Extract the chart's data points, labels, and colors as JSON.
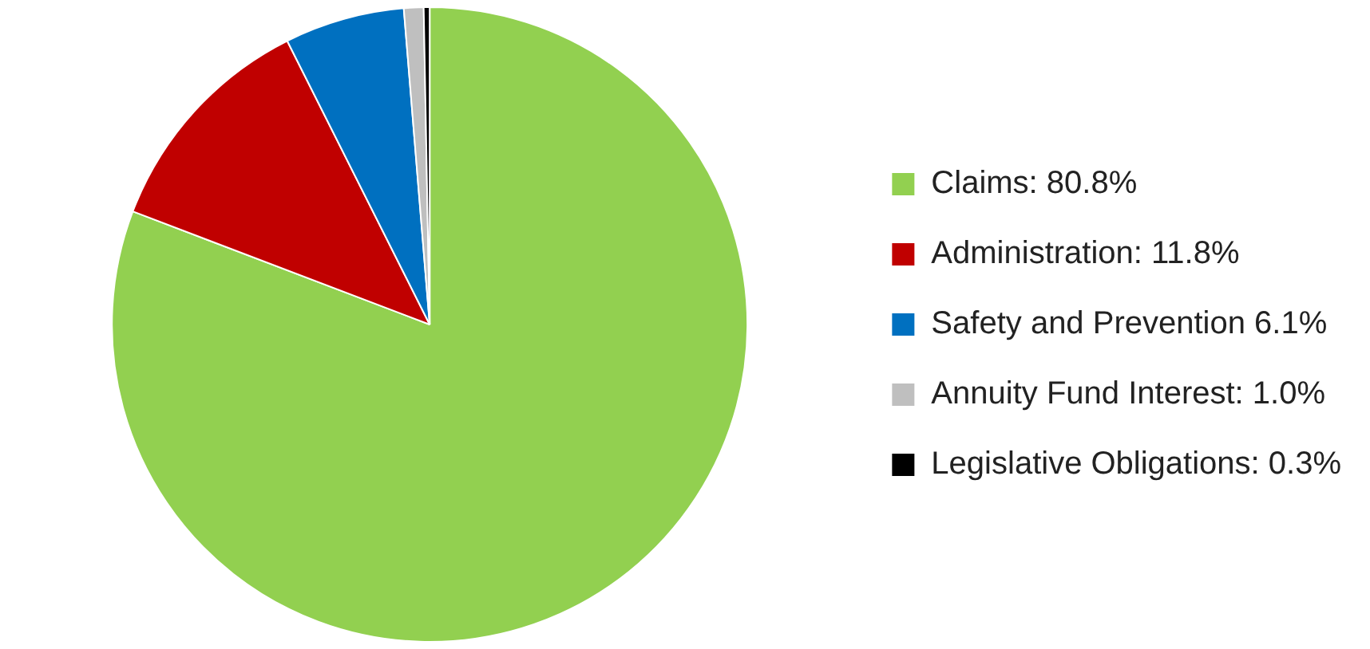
{
  "chart_data": {
    "type": "pie",
    "categories": [
      "Claims: 80.8%",
      "Administration: 11.8%",
      "Safety and Prevention 6.1%",
      "Annuity Fund Interest: 1.0%",
      "Legislative Obligations: 0.3%"
    ],
    "values": [
      80.8,
      11.8,
      6.1,
      1.0,
      0.3
    ],
    "colors": [
      "#92d050",
      "#c00000",
      "#0070c0",
      "#bfbfbf",
      "#000000"
    ],
    "legend": "right"
  }
}
